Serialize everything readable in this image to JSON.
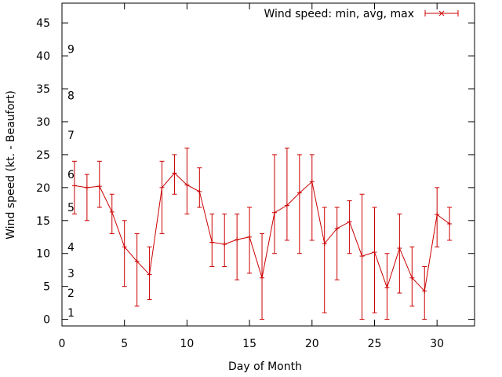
{
  "chart_data": {
    "type": "line",
    "title": "",
    "xlabel": "Day of Month",
    "ylabel": "Wind speed (kt. - Beaufort)",
    "xlim": [
      0,
      33
    ],
    "ylim": [
      -1,
      48
    ],
    "xticks": [
      "0",
      "5",
      "10",
      "15",
      "20",
      "25",
      "30"
    ],
    "yticks": [
      "0",
      "5",
      "10",
      "15",
      "20",
      "25",
      "30",
      "35",
      "40",
      "45"
    ],
    "beaufort_labels": [
      {
        "label": "1",
        "value": 1
      },
      {
        "label": "2",
        "value": 4
      },
      {
        "label": "3",
        "value": 7
      },
      {
        "label": "4",
        "value": 11
      },
      {
        "label": "5",
        "value": 17
      },
      {
        "label": "6",
        "value": 22
      },
      {
        "label": "7",
        "value": 28
      },
      {
        "label": "8",
        "value": 34
      },
      {
        "label": "9",
        "value": 41
      }
    ],
    "legend_position": "top-right",
    "grid": false,
    "series": [
      {
        "name": "Wind speed: min, avg, max",
        "color": "#cc0000",
        "x": [
          1,
          2,
          3,
          4,
          5,
          6,
          7,
          8,
          9,
          10,
          11,
          12,
          13,
          14,
          15,
          16,
          17,
          18,
          19,
          20,
          21,
          22,
          23,
          24,
          25,
          26,
          27,
          28,
          29,
          30,
          31
        ],
        "avg": [
          20.3,
          20,
          20.2,
          16.3,
          11,
          8.8,
          6.8,
          20,
          22.2,
          20.4,
          19.4,
          11.7,
          11.4,
          12.1,
          12.5,
          6.3,
          16.2,
          17.3,
          19.2,
          20.9,
          11.5,
          13.8,
          14.8,
          9.6,
          10.2,
          4.8,
          10.8,
          6.3,
          4.3,
          15.9,
          14.5
        ],
        "min": [
          16,
          15,
          17,
          13,
          5,
          2,
          3,
          13,
          19,
          16,
          17,
          8,
          8,
          6,
          7,
          0,
          10,
          12,
          10,
          12,
          1,
          6,
          10,
          0,
          1,
          0,
          4,
          2,
          0,
          11,
          12
        ],
        "max": [
          24,
          22,
          24,
          19,
          15,
          13,
          11,
          24,
          25,
          26,
          23,
          16,
          16,
          16,
          17,
          13,
          25,
          26,
          25,
          25,
          17,
          17,
          18,
          19,
          17,
          10,
          16,
          11,
          8,
          20,
          17
        ]
      }
    ]
  }
}
